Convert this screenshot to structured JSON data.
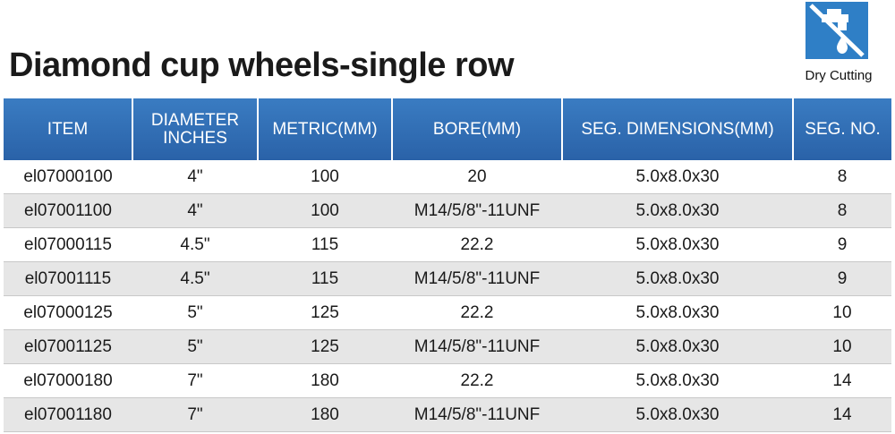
{
  "title": "Diamond cup wheels-single row",
  "badge": {
    "icon": "no-water-faucet-icon",
    "label": "Dry Cutting",
    "color": "#2f7fc6"
  },
  "table": {
    "headers": [
      "ITEM",
      "DIAMETER\nINCHES",
      "METRIC(MM)",
      "BORE(MM)",
      "SEG. DIMENSIONS(MM)",
      "SEG. NO."
    ],
    "rows": [
      [
        "el07000100",
        "4\"",
        "100",
        "20",
        "5.0x8.0x30",
        "8"
      ],
      [
        "el07001100",
        "4\"",
        "100",
        "M14/5/8\"-11UNF",
        "5.0x8.0x30",
        "8"
      ],
      [
        "el07000115",
        "4.5\"",
        "115",
        "22.2",
        "5.0x8.0x30",
        "9"
      ],
      [
        "el07001115",
        "4.5\"",
        "115",
        "M14/5/8\"-11UNF",
        "5.0x8.0x30",
        "9"
      ],
      [
        "el07000125",
        "5\"",
        "125",
        "22.2",
        "5.0x8.0x30",
        "10"
      ],
      [
        "el07001125",
        "5\"",
        "125",
        "M14/5/8\"-11UNF",
        "5.0x8.0x30",
        "10"
      ],
      [
        "el07000180",
        "7\"",
        "180",
        "22.2",
        "5.0x8.0x30",
        "14"
      ],
      [
        "el07001180",
        "7\"",
        "180",
        "M14/5/8\"-11UNF",
        "5.0x8.0x30",
        "14"
      ]
    ]
  },
  "colors": {
    "header_bg": "#2f6eb5",
    "header_text": "#ffffff",
    "stripe": "#e6e6e6"
  }
}
